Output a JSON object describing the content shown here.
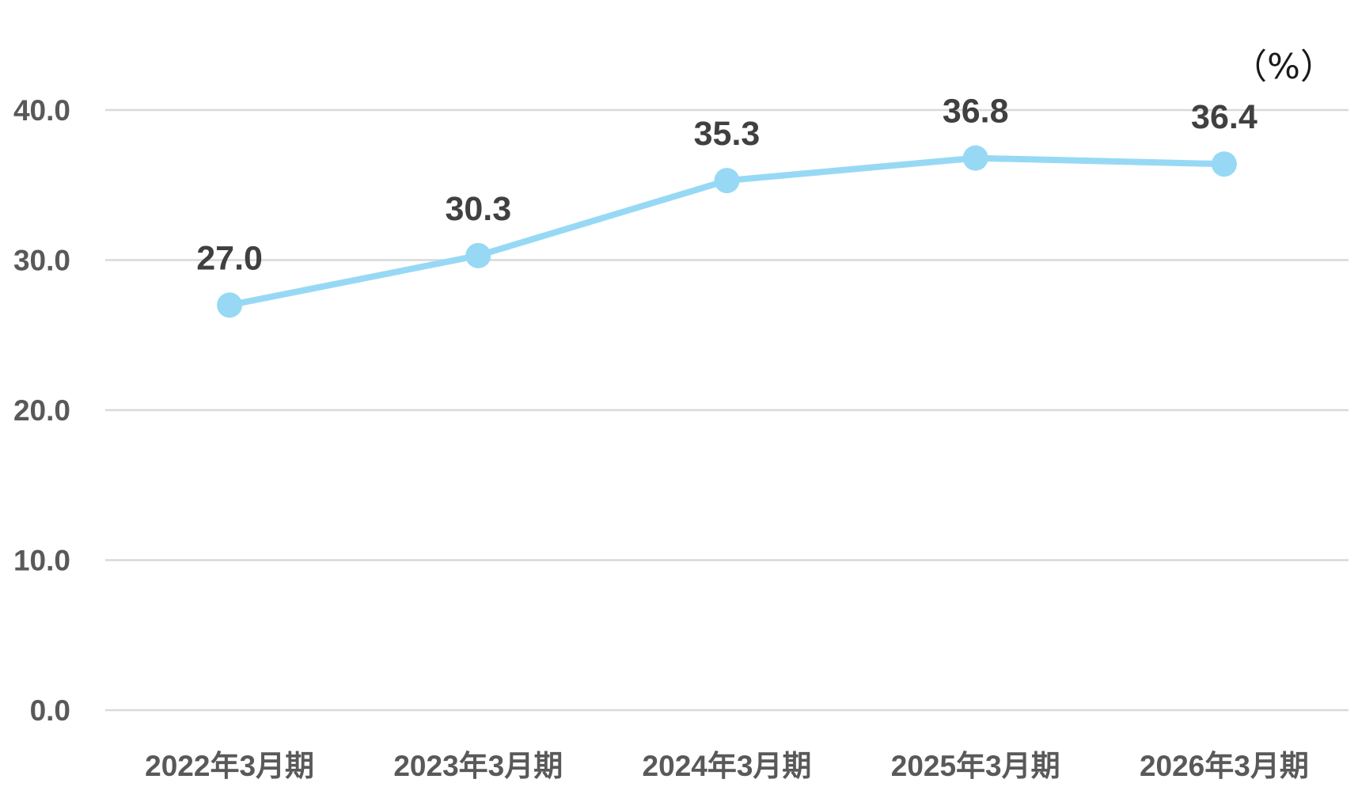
{
  "chart_data": {
    "type": "line",
    "unit_label": "（%）",
    "categories": [
      "2022年3月期",
      "2023年3月期",
      "2024年3月期",
      "2025年3月期",
      "2026年3月期"
    ],
    "series": [
      {
        "values": [
          27.0,
          30.3,
          35.3,
          36.8,
          36.4
        ],
        "data_labels": [
          "27.0",
          "30.3",
          "35.3",
          "36.8",
          "36.4"
        ],
        "color": "#97d9f5"
      }
    ],
    "y_ticks": [
      "0.0",
      "10.0",
      "20.0",
      "30.0",
      "40.0"
    ],
    "y_tick_values": [
      0,
      10,
      20,
      30,
      40
    ],
    "ylim": [
      0,
      40
    ],
    "grid": true,
    "legend": "none",
    "gridline_color": "#d9d9d9"
  }
}
